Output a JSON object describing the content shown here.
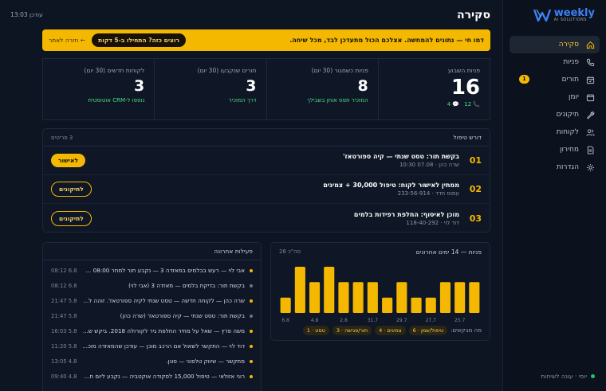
{
  "brand": {
    "name": "weekly",
    "sub": "AI SOLUTIONS"
  },
  "sidebar": {
    "items": [
      {
        "label": "סקירה",
        "icon": "home-icon",
        "active": true
      },
      {
        "label": "פניות",
        "icon": "phone-icon"
      },
      {
        "label": "תורים",
        "icon": "calendar-icon",
        "badge": "1"
      },
      {
        "label": "יומן",
        "icon": "calendar-grid-icon"
      },
      {
        "label": "תיקונים",
        "icon": "wrench-icon"
      },
      {
        "label": "לקוחות",
        "icon": "users-icon"
      },
      {
        "label": "מחירון",
        "icon": "document-icon"
      },
      {
        "label": "הגדרות",
        "icon": "gear-icon"
      }
    ],
    "footer": "יוסי · עונה לשיחות"
  },
  "header": {
    "title": "סקירה",
    "clock": "עודכן 13:03"
  },
  "banner": {
    "text": "דמו חי — נתונים להמחשה. אצלכם הכול מתעדכן לבד, מכל שיחה.",
    "button": "רוצים כזה? התחילו ב-5 דקות",
    "link": "← חזרה לאתר"
  },
  "stats": [
    {
      "label": "פניות השבוע",
      "value": "16",
      "calls": "12",
      "chats": "4"
    },
    {
      "label": "פניות כשסגור (30 יום)",
      "value": "8",
      "sub": "המזכיר תפס אותן בשבילך"
    },
    {
      "label": "תורים שנקבעו (30 יום)",
      "value": "3",
      "sub": "דרך המזכיר"
    },
    {
      "label": "לקוחות חדשים (30 יום)",
      "value": "3",
      "sub": "נוספו ל-CRM אוטומטית"
    }
  ],
  "requests": {
    "title": "דורש טיפול",
    "count": "3 פריטים",
    "items": [
      {
        "num": "01",
        "title": "בקשת תור: טסט שנתי — קיה ספורטאז'",
        "sub": "שרה כהן · 07.08 10:30",
        "action": "לאישור",
        "primary": true
      },
      {
        "num": "02",
        "title": "ממתין לאישור לקוח: טיפול 30,000 + צמיגים",
        "sub": "עמוס חדד · 233-56-914",
        "action": "לתיקונים",
        "primary": false
      },
      {
        "num": "03",
        "title": "מוכן לאיסוף: החלפת רפידות בלמים",
        "sub": "דוד לוי · 118-40-292",
        "action": "לתיקונים",
        "primary": false
      }
    ]
  },
  "chart_data": {
    "type": "bar",
    "title": "פניות — 14 ימים אחרונים",
    "meta": "סה\"כ 26",
    "values": [
      1,
      3,
      2,
      3,
      2,
      2,
      2,
      1,
      2,
      1,
      1,
      2,
      2,
      2
    ],
    "labels": [
      "6.8",
      "",
      "4.8",
      "",
      "2.8",
      "",
      "31.7",
      "",
      "29.7",
      "",
      "27.7",
      "",
      "25.7",
      ""
    ],
    "ylim": [
      0,
      3
    ],
    "tags_label": "מה מבקשים:",
    "tags": [
      "טיפול/שמן · 6",
      "צמיגים · 4",
      "תור/פגישה · 3",
      "טסט · 1"
    ]
  },
  "activity": {
    "title": "פעילות אחרונה",
    "items": [
      {
        "text": "אבי לוי — רעש בבלמים במאזדה 3 — נקבע תור למחר 08:00 אח...",
        "time": "08:12 6.8",
        "hi": true
      },
      {
        "text": "בקשת תור: בדיקת בלמים — מאזדה 3 (אבי לוי)",
        "time": "08:12 6.8",
        "hi": false
      },
      {
        "text": "שרה כהן — לקוחה חדשה — טסט שנתי לקיה ספורטאז'. זוהה ל...",
        "time": "21:47 5.8",
        "hi": true
      },
      {
        "text": "בקשת תור: טסט שנתי — קיה ספורטאז' (שרה כהן)",
        "time": "21:47 5.8",
        "hi": false
      },
      {
        "text": "משה פרץ — שאל על מחיר החלפת גיר לקורולה 2018. ביקש ש...",
        "time": "16:03 5.8",
        "hi": true
      },
      {
        "text": "דוד לוי — התקשר לשאול אם הרכב מוכן — עודכן שהמאזדה מוכ...",
        "time": "11:20 5.8",
        "hi": true
      },
      {
        "text": "מתקשר — שיווק טלפוני — סונן.",
        "time": "13:05 4.8",
        "hi": true
      },
      {
        "text": "רוני אזולאי — טיפול 15,000 לסקודה אוקטביה — נקבע ליום חמי...",
        "time": "09:40 4.8",
        "hi": true
      }
    ]
  }
}
